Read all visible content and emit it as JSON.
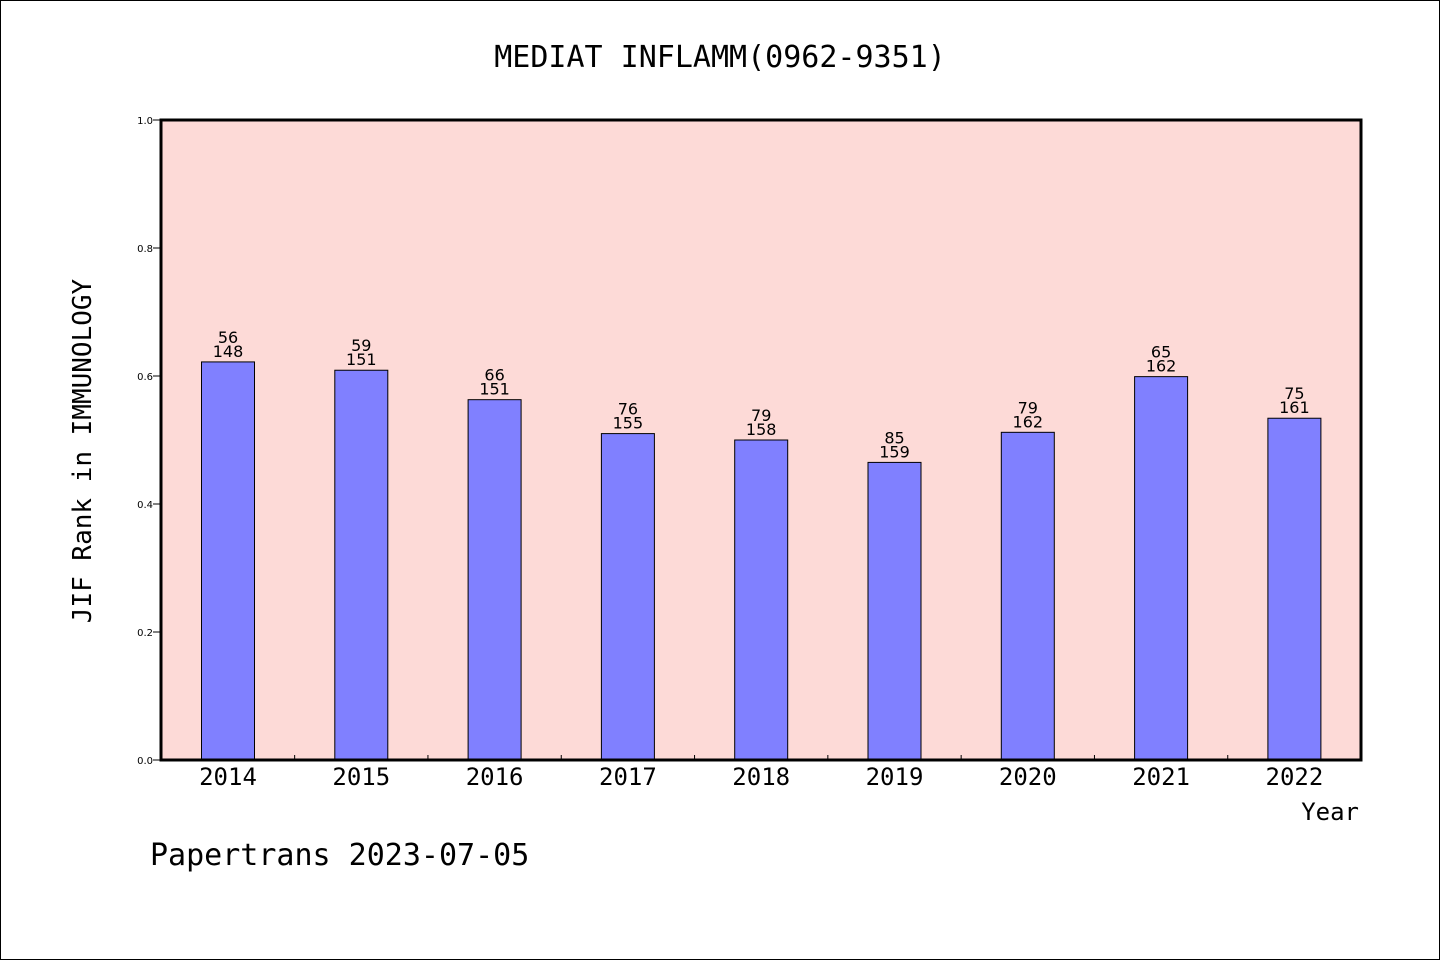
{
  "chart_data": {
    "type": "bar",
    "title": "MEDIAT INFLAMM(0962-9351)",
    "xlabel": "Year",
    "ylabel": "JIF Rank in IMMUNOLOGY",
    "ylim": [
      0,
      1.0
    ],
    "yticks": [
      "0.0",
      "0.2",
      "0.4",
      "0.6",
      "0.8",
      "1.0"
    ],
    "grid": false,
    "categories": [
      "2014",
      "2015",
      "2016",
      "2017",
      "2018",
      "2019",
      "2020",
      "2021",
      "2022"
    ],
    "values": [
      0.622,
      0.609,
      0.563,
      0.51,
      0.5,
      0.465,
      0.512,
      0.599,
      0.534
    ],
    "labels": [
      [
        "56",
        "148"
      ],
      [
        "59",
        "151"
      ],
      [
        "66",
        "151"
      ],
      [
        "76",
        "155"
      ],
      [
        "79",
        "158"
      ],
      [
        "85",
        "159"
      ],
      [
        "79",
        "162"
      ],
      [
        "65",
        "162"
      ],
      [
        "75",
        "161"
      ]
    ],
    "colors": {
      "plot_background": "#fddad7",
      "bar_fill": "#8080ff",
      "bar_stroke": "#000000"
    }
  },
  "footer": "Papertrans 2023-07-05"
}
